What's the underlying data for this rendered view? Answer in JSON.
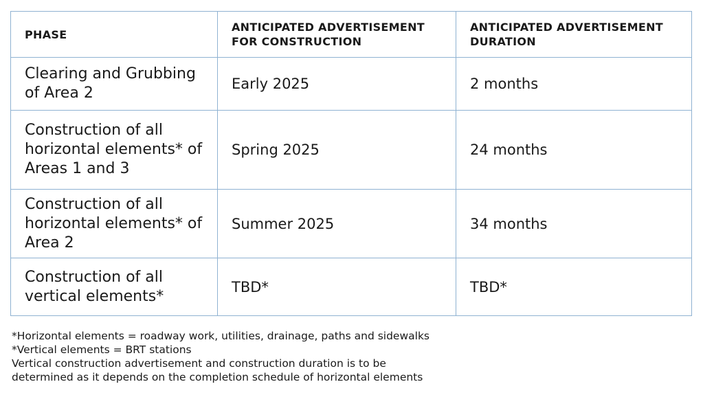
{
  "table": {
    "headers": [
      "PHASE",
      "ANTICIPATED ADVERTISEMENT FOR CONSTRUCTION",
      "ANTICIPATED ADVERTISEMENT DURATION"
    ],
    "rows": [
      {
        "phase": "Clearing and Grubbing of Area 2",
        "advertisement": "Early 2025",
        "duration": "2 months"
      },
      {
        "phase": "Construction of all horizontal elements* of Areas 1 and 3",
        "advertisement": "Spring 2025",
        "duration": "24 months"
      },
      {
        "phase": "Construction of all horizontal elements* of Area 2",
        "advertisement": "Summer 2025",
        "duration": "34 months"
      },
      {
        "phase": "Construction of all vertical elements*",
        "advertisement": "TBD*",
        "duration": "TBD*"
      }
    ]
  },
  "notes": [
    "*Horizontal elements = roadway work, utilities, drainage, paths and sidewalks",
    "*Vertical elements = BRT stations",
    "Vertical construction advertisement and construction duration is to be",
    "determined as it depends on the completion schedule of horizontal elements"
  ]
}
